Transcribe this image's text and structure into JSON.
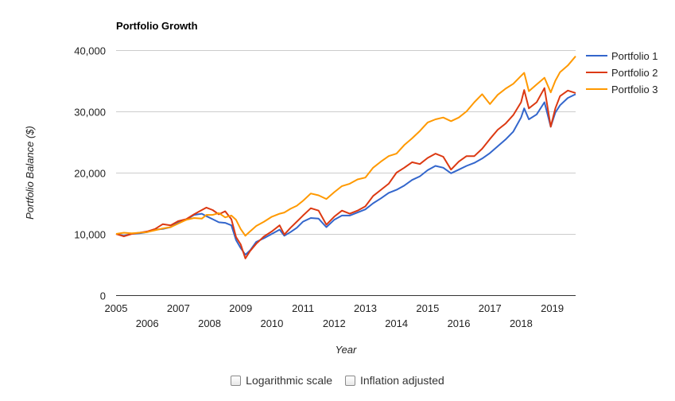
{
  "chart_data": {
    "type": "line",
    "title": "Portfolio Growth",
    "xlabel": "Year",
    "ylabel": "Portfolio Balance ($)",
    "ylim": [
      0,
      40000
    ],
    "yticks": [
      0,
      10000,
      20000,
      30000,
      40000
    ],
    "ytick_labels": [
      "0",
      "10,000",
      "20,000",
      "30,000",
      "40,000"
    ],
    "xlim": [
      2005.0,
      2019.75
    ],
    "xticks": [
      2005,
      2006,
      2007,
      2008,
      2009,
      2010,
      2011,
      2012,
      2013,
      2014,
      2015,
      2016,
      2017,
      2018,
      2019
    ],
    "xtick_labels": [
      "2005",
      "2006",
      "2007",
      "2008",
      "2009",
      "2010",
      "2011",
      "2012",
      "2013",
      "2014",
      "2015",
      "2016",
      "2017",
      "2018",
      "2019"
    ],
    "legend_position": "right",
    "series": [
      {
        "name": "Portfolio 1",
        "color": "#3366cc",
        "points": [
          [
            2005.0,
            10000
          ],
          [
            2005.25,
            9700
          ],
          [
            2005.5,
            10000
          ],
          [
            2005.75,
            10100
          ],
          [
            2006.0,
            10300
          ],
          [
            2006.25,
            10700
          ],
          [
            2006.5,
            10800
          ],
          [
            2006.75,
            11100
          ],
          [
            2007.0,
            11900
          ],
          [
            2007.25,
            12300
          ],
          [
            2007.5,
            13100
          ],
          [
            2007.75,
            13300
          ],
          [
            2007.9,
            12900
          ],
          [
            2008.1,
            12400
          ],
          [
            2008.3,
            11900
          ],
          [
            2008.5,
            11800
          ],
          [
            2008.7,
            11400
          ],
          [
            2008.85,
            9000
          ],
          [
            2009.0,
            7700
          ],
          [
            2009.15,
            6600
          ],
          [
            2009.3,
            7300
          ],
          [
            2009.5,
            8700
          ],
          [
            2009.75,
            9300
          ],
          [
            2010.0,
            10000
          ],
          [
            2010.25,
            10700
          ],
          [
            2010.4,
            9700
          ],
          [
            2010.6,
            10300
          ],
          [
            2010.8,
            11000
          ],
          [
            2011.0,
            12000
          ],
          [
            2011.25,
            12600
          ],
          [
            2011.5,
            12500
          ],
          [
            2011.75,
            11100
          ],
          [
            2012.0,
            12300
          ],
          [
            2012.25,
            13000
          ],
          [
            2012.5,
            13000
          ],
          [
            2012.75,
            13500
          ],
          [
            2013.0,
            14000
          ],
          [
            2013.25,
            15000
          ],
          [
            2013.5,
            15800
          ],
          [
            2013.75,
            16700
          ],
          [
            2014.0,
            17200
          ],
          [
            2014.25,
            17900
          ],
          [
            2014.5,
            18800
          ],
          [
            2014.75,
            19400
          ],
          [
            2015.0,
            20400
          ],
          [
            2015.25,
            21100
          ],
          [
            2015.5,
            20800
          ],
          [
            2015.75,
            19900
          ],
          [
            2016.0,
            20500
          ],
          [
            2016.25,
            21100
          ],
          [
            2016.5,
            21600
          ],
          [
            2016.75,
            22300
          ],
          [
            2017.0,
            23200
          ],
          [
            2017.25,
            24300
          ],
          [
            2017.5,
            25400
          ],
          [
            2017.75,
            26700
          ],
          [
            2018.0,
            29000
          ],
          [
            2018.1,
            30500
          ],
          [
            2018.25,
            28700
          ],
          [
            2018.5,
            29500
          ],
          [
            2018.75,
            31500
          ],
          [
            2018.95,
            27500
          ],
          [
            2019.1,
            29800
          ],
          [
            2019.25,
            31000
          ],
          [
            2019.5,
            32200
          ],
          [
            2019.75,
            32800
          ]
        ]
      },
      {
        "name": "Portfolio 2",
        "color": "#dc3912",
        "points": [
          [
            2005.0,
            10000
          ],
          [
            2005.25,
            9600
          ],
          [
            2005.5,
            10000
          ],
          [
            2005.75,
            10200
          ],
          [
            2006.0,
            10400
          ],
          [
            2006.25,
            10800
          ],
          [
            2006.5,
            11600
          ],
          [
            2006.75,
            11400
          ],
          [
            2007.0,
            12100
          ],
          [
            2007.25,
            12400
          ],
          [
            2007.5,
            13200
          ],
          [
            2007.75,
            13900
          ],
          [
            2007.9,
            14300
          ],
          [
            2008.1,
            13900
          ],
          [
            2008.3,
            13200
          ],
          [
            2008.5,
            13700
          ],
          [
            2008.7,
            12400
          ],
          [
            2008.85,
            9500
          ],
          [
            2009.0,
            8300
          ],
          [
            2009.15,
            6000
          ],
          [
            2009.3,
            7200
          ],
          [
            2009.5,
            8400
          ],
          [
            2009.75,
            9600
          ],
          [
            2010.0,
            10400
          ],
          [
            2010.25,
            11400
          ],
          [
            2010.4,
            9900
          ],
          [
            2010.6,
            11000
          ],
          [
            2010.8,
            12000
          ],
          [
            2011.0,
            13000
          ],
          [
            2011.25,
            14200
          ],
          [
            2011.5,
            13800
          ],
          [
            2011.75,
            11500
          ],
          [
            2012.0,
            12800
          ],
          [
            2012.25,
            13800
          ],
          [
            2012.5,
            13300
          ],
          [
            2012.75,
            13800
          ],
          [
            2013.0,
            14500
          ],
          [
            2013.25,
            16200
          ],
          [
            2013.5,
            17200
          ],
          [
            2013.75,
            18200
          ],
          [
            2014.0,
            20000
          ],
          [
            2014.25,
            20800
          ],
          [
            2014.5,
            21700
          ],
          [
            2014.75,
            21400
          ],
          [
            2015.0,
            22400
          ],
          [
            2015.25,
            23100
          ],
          [
            2015.5,
            22600
          ],
          [
            2015.75,
            20500
          ],
          [
            2016.0,
            21800
          ],
          [
            2016.25,
            22700
          ],
          [
            2016.5,
            22700
          ],
          [
            2016.75,
            23900
          ],
          [
            2017.0,
            25500
          ],
          [
            2017.25,
            27000
          ],
          [
            2017.5,
            28000
          ],
          [
            2017.75,
            29400
          ],
          [
            2018.0,
            31500
          ],
          [
            2018.1,
            33500
          ],
          [
            2018.25,
            30500
          ],
          [
            2018.5,
            31500
          ],
          [
            2018.75,
            33800
          ],
          [
            2018.95,
            27500
          ],
          [
            2019.1,
            30500
          ],
          [
            2019.25,
            32500
          ],
          [
            2019.5,
            33400
          ],
          [
            2019.75,
            33000
          ]
        ]
      },
      {
        "name": "Portfolio 3",
        "color": "#ff9900",
        "points": [
          [
            2005.0,
            10000
          ],
          [
            2005.25,
            10200
          ],
          [
            2005.5,
            10100
          ],
          [
            2005.75,
            10200
          ],
          [
            2006.0,
            10300
          ],
          [
            2006.25,
            10600
          ],
          [
            2006.5,
            10900
          ],
          [
            2006.75,
            11100
          ],
          [
            2007.0,
            11700
          ],
          [
            2007.25,
            12300
          ],
          [
            2007.5,
            12600
          ],
          [
            2007.75,
            12500
          ],
          [
            2007.9,
            13100
          ],
          [
            2008.1,
            13100
          ],
          [
            2008.3,
            13400
          ],
          [
            2008.5,
            12700
          ],
          [
            2008.7,
            13000
          ],
          [
            2008.85,
            12300
          ],
          [
            2009.0,
            10800
          ],
          [
            2009.15,
            9700
          ],
          [
            2009.3,
            10400
          ],
          [
            2009.5,
            11300
          ],
          [
            2009.75,
            12000
          ],
          [
            2010.0,
            12800
          ],
          [
            2010.25,
            13300
          ],
          [
            2010.4,
            13500
          ],
          [
            2010.6,
            14100
          ],
          [
            2010.8,
            14600
          ],
          [
            2011.0,
            15400
          ],
          [
            2011.25,
            16600
          ],
          [
            2011.5,
            16300
          ],
          [
            2011.75,
            15700
          ],
          [
            2012.0,
            16800
          ],
          [
            2012.25,
            17800
          ],
          [
            2012.5,
            18200
          ],
          [
            2012.75,
            18900
          ],
          [
            2013.0,
            19200
          ],
          [
            2013.25,
            20800
          ],
          [
            2013.5,
            21800
          ],
          [
            2013.75,
            22700
          ],
          [
            2014.0,
            23100
          ],
          [
            2014.25,
            24500
          ],
          [
            2014.5,
            25600
          ],
          [
            2014.75,
            26800
          ],
          [
            2015.0,
            28200
          ],
          [
            2015.25,
            28700
          ],
          [
            2015.5,
            29000
          ],
          [
            2015.75,
            28400
          ],
          [
            2016.0,
            29000
          ],
          [
            2016.25,
            30000
          ],
          [
            2016.5,
            31500
          ],
          [
            2016.75,
            32800
          ],
          [
            2017.0,
            31200
          ],
          [
            2017.25,
            32700
          ],
          [
            2017.5,
            33700
          ],
          [
            2017.75,
            34500
          ],
          [
            2018.0,
            35800
          ],
          [
            2018.1,
            36300
          ],
          [
            2018.25,
            33300
          ],
          [
            2018.5,
            34400
          ],
          [
            2018.75,
            35500
          ],
          [
            2018.95,
            33100
          ],
          [
            2019.1,
            35000
          ],
          [
            2019.25,
            36400
          ],
          [
            2019.5,
            37500
          ],
          [
            2019.75,
            39000
          ]
        ]
      }
    ]
  },
  "controls": {
    "log_scale_label": "Logarithmic scale",
    "log_scale_checked": false,
    "inflation_label": "Inflation adjusted",
    "inflation_checked": false
  }
}
